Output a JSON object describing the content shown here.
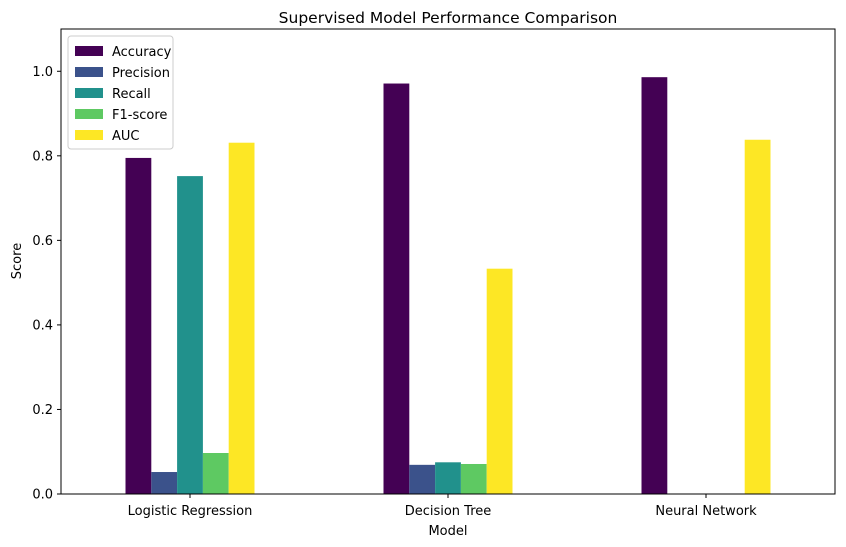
{
  "chart_data": {
    "type": "bar",
    "title": "Supervised Model Performance Comparison",
    "xlabel": "Model",
    "ylabel": "Score",
    "categories": [
      "Logistic Regression",
      "Decision Tree",
      "Neural Network"
    ],
    "ylim": [
      0,
      1.1
    ],
    "yticks": [
      0.0,
      0.2,
      0.4,
      0.6,
      0.8,
      1.0
    ],
    "ytick_labels": [
      "0.0",
      "0.2",
      "0.4",
      "0.6",
      "0.8",
      "1.0"
    ],
    "grid": false,
    "legend_position": "top-left",
    "series": [
      {
        "name": "Accuracy",
        "color": "#440154",
        "values": [
          0.795,
          0.971,
          0.986
        ]
      },
      {
        "name": "Precision",
        "color": "#3b528b",
        "values": [
          0.052,
          0.069,
          0.0
        ]
      },
      {
        "name": "Recall",
        "color": "#21918c",
        "values": [
          0.752,
          0.075,
          0.0
        ]
      },
      {
        "name": "F1-score",
        "color": "#5ec962",
        "values": [
          0.097,
          0.071,
          0.0
        ]
      },
      {
        "name": "AUC",
        "color": "#fde725",
        "values": [
          0.831,
          0.533,
          0.838
        ]
      }
    ]
  }
}
